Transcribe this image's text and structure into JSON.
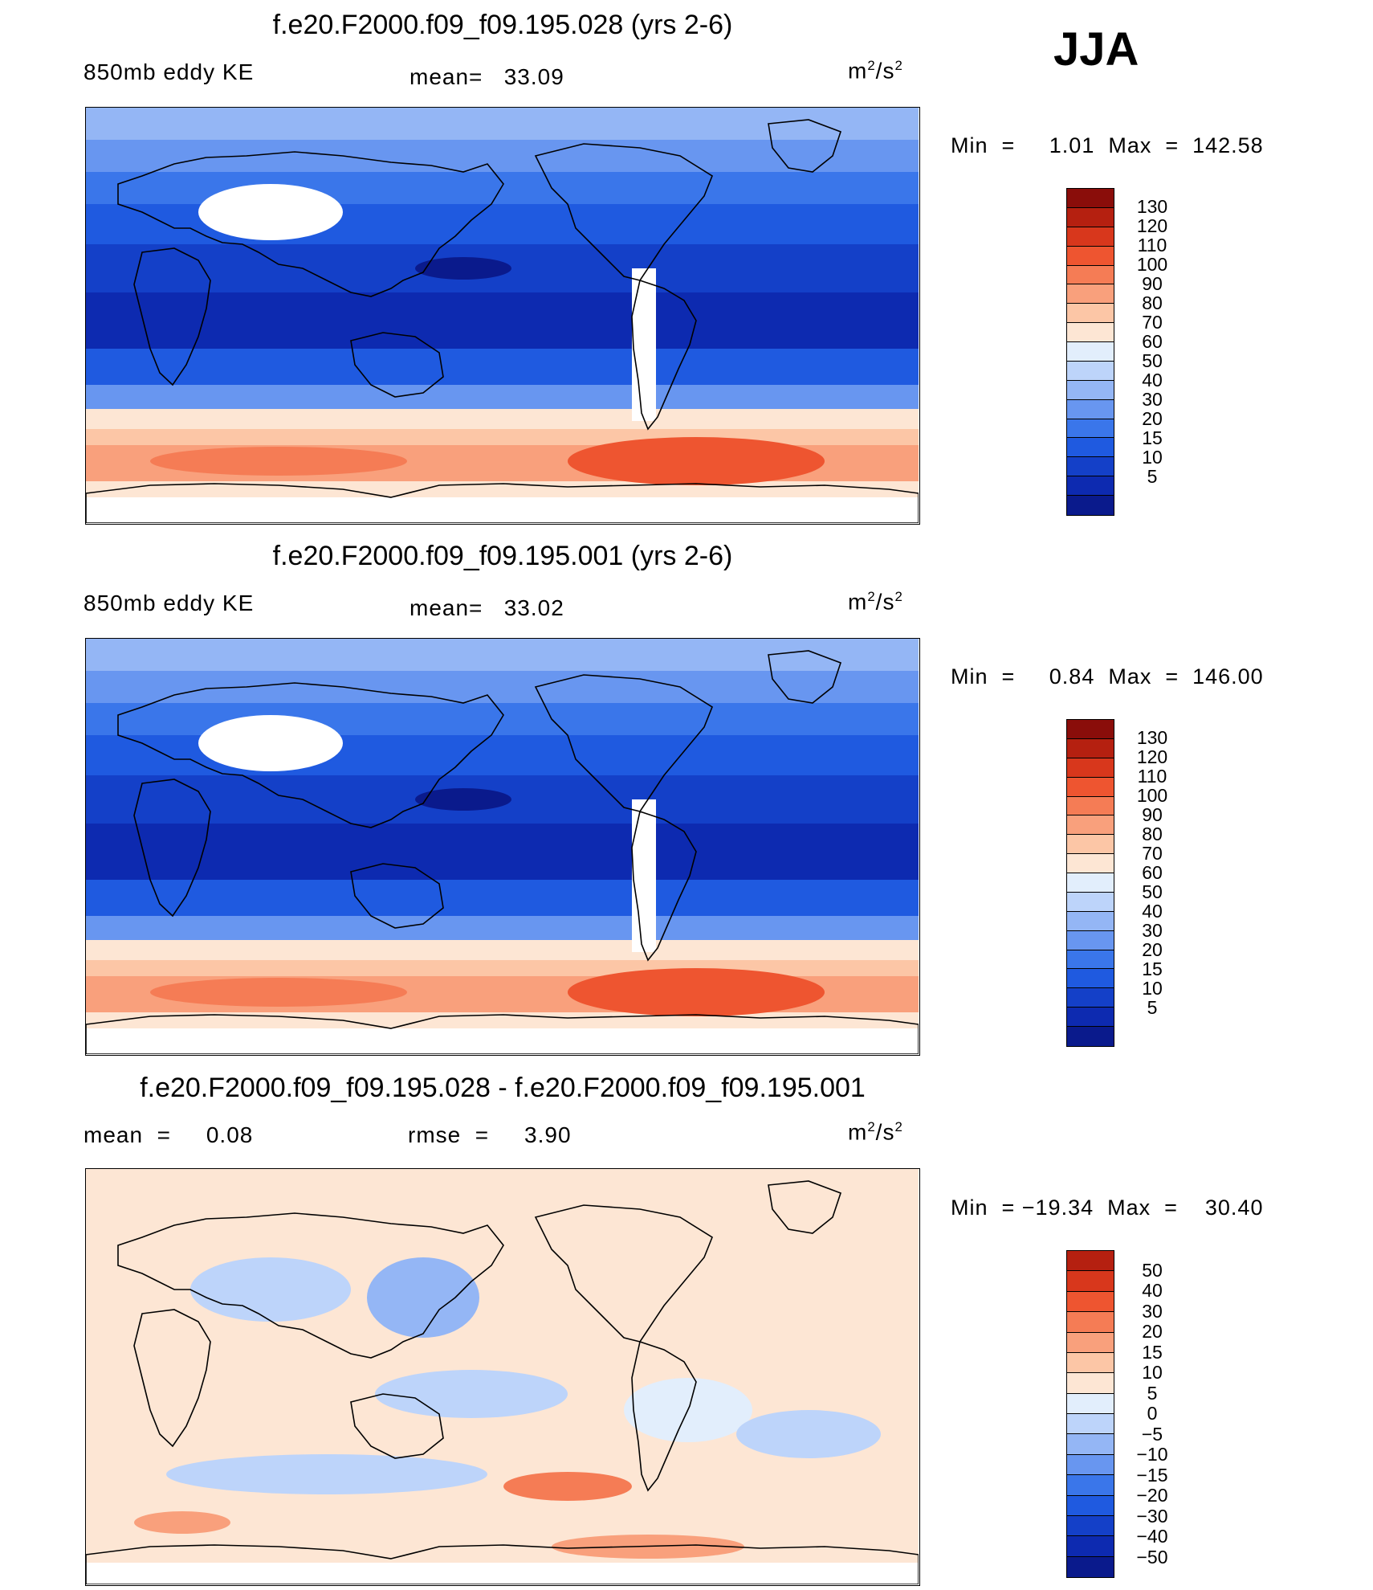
{
  "season": "JJA",
  "panels": [
    {
      "title": "f.e20.F2000.f09_f09.195.028 (yrs 2-6)",
      "left_label": "850mb eddy KE",
      "center_label": "mean=   33.09",
      "units": "m2/s2",
      "minmax": "Min  =     1.01  Max  =  142.58",
      "map_type": "field"
    },
    {
      "title": "f.e20.F2000.f09_f09.195.001 (yrs 2-6)",
      "left_label": "850mb eddy KE",
      "center_label": "mean=   33.02",
      "units": "m2/s2",
      "minmax": "Min  =     0.84  Max  =  146.00",
      "map_type": "field"
    },
    {
      "title": "f.e20.F2000.f09_f09.195.028 - f.e20.F2000.f09_f09.195.001",
      "left_label": "mean  =     0.08",
      "center_label": "rmse  =     3.90",
      "units": "m2/s2",
      "minmax": "Min  = −19.34  Max  =    30.40",
      "map_type": "difference"
    }
  ],
  "chart_data": [
    {
      "type": "heatmap",
      "title": "f.e20.F2000.f09_f09.195.028 (yrs 2-6)",
      "variable": "850mb eddy KE",
      "units": "m2/s2",
      "mean": 33.09,
      "min": 1.01,
      "max": 142.58,
      "contour_levels": [
        "5",
        "10",
        "15",
        "20",
        "30",
        "40",
        "50",
        "60",
        "70",
        "80",
        "90",
        "100",
        "110",
        "120",
        "130"
      ],
      "colors": [
        "#0a1a8c",
        "#0d2ab0",
        "#1440c8",
        "#1f5ae0",
        "#3a76ea",
        "#6896f0",
        "#94b6f5",
        "#bdd4fa",
        "#e2eefc",
        "#fde6d4",
        "#fcc6a6",
        "#f9a07c",
        "#f57c55",
        "#ee5530",
        "#d8371c",
        "#b52010",
        "#8a0d0a"
      ]
    },
    {
      "type": "heatmap",
      "title": "f.e20.F2000.f09_f09.195.001 (yrs 2-6)",
      "variable": "850mb eddy KE",
      "units": "m2/s2",
      "mean": 33.02,
      "min": 0.84,
      "max": 146.0,
      "contour_levels": [
        "5",
        "10",
        "15",
        "20",
        "30",
        "40",
        "50",
        "60",
        "70",
        "80",
        "90",
        "100",
        "110",
        "120",
        "130"
      ],
      "colors": [
        "#0a1a8c",
        "#0d2ab0",
        "#1440c8",
        "#1f5ae0",
        "#3a76ea",
        "#6896f0",
        "#94b6f5",
        "#bdd4fa",
        "#e2eefc",
        "#fde6d4",
        "#fcc6a6",
        "#f9a07c",
        "#f57c55",
        "#ee5530",
        "#d8371c",
        "#b52010",
        "#8a0d0a"
      ]
    },
    {
      "type": "heatmap",
      "title": "f.e20.F2000.f09_f09.195.028 - f.e20.F2000.f09_f09.195.001",
      "units": "m2/s2",
      "mean": 0.08,
      "rmse": 3.9,
      "min": -19.34,
      "max": 30.4,
      "contour_levels": [
        "−50",
        "−40",
        "−30",
        "−20",
        "−15",
        "−10",
        "−5",
        "0",
        "5",
        "10",
        "15",
        "20",
        "30",
        "40",
        "50"
      ],
      "colors": [
        "#0a1a8c",
        "#0d2ab0",
        "#1440c8",
        "#1f5ae0",
        "#3a76ea",
        "#6896f0",
        "#94b6f5",
        "#bdd4fa",
        "#e2eefc",
        "#fde6d4",
        "#fcc6a6",
        "#f9a07c",
        "#f57c55",
        "#ee5530",
        "#d8371c",
        "#b52010"
      ]
    }
  ]
}
